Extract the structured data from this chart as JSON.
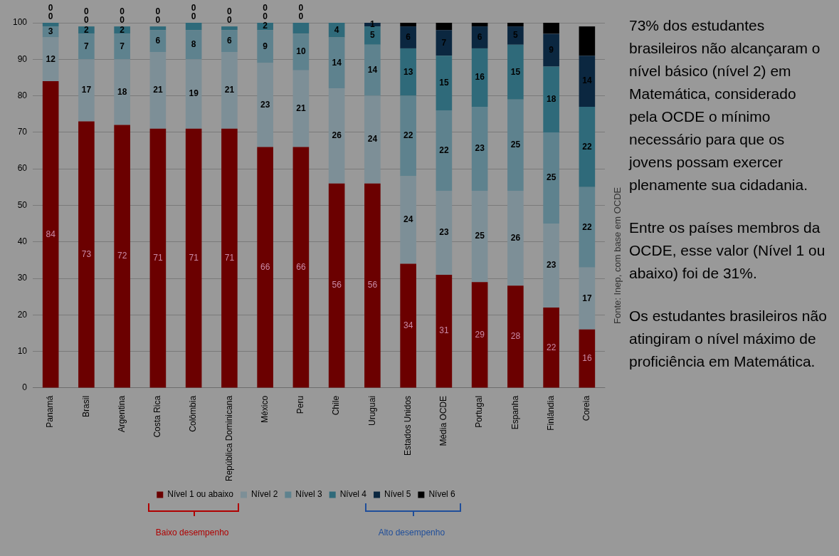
{
  "chart_data": {
    "type": "bar",
    "stacked": true,
    "categories": [
      "Panamá",
      "Brasil",
      "Argentina",
      "Costa Rica",
      "Colômbia",
      "República Dominicana",
      "México",
      "Peru",
      "Chile",
      "Uruguai",
      "Estados Unidos",
      "Média OCDE",
      "Portugal",
      "Espanha",
      "Finlândia",
      "Coreia"
    ],
    "series": [
      {
        "name": "Nível 1 ou abaixo",
        "color": "#6b0000",
        "values": [
          84,
          73,
          72,
          71,
          71,
          71,
          66,
          66,
          56,
          56,
          34,
          31,
          29,
          28,
          22,
          16
        ]
      },
      {
        "name": "Nível 2",
        "color": "#7d8f97",
        "values": [
          12,
          17,
          18,
          21,
          19,
          21,
          23,
          21,
          26,
          24,
          24,
          23,
          25,
          26,
          23,
          17
        ]
      },
      {
        "name": "Nível 3",
        "color": "#5e828e",
        "values": [
          3,
          7,
          7,
          6,
          8,
          6,
          9,
          10,
          14,
          14,
          22,
          22,
          23,
          25,
          25,
          22
        ]
      },
      {
        "name": "Nível 4",
        "color": "#2f6a7a",
        "values": [
          1,
          2,
          2,
          1,
          2,
          1,
          2,
          3,
          4,
          5,
          13,
          15,
          16,
          15,
          18,
          22
        ],
        "value_labels": [
          null,
          "2",
          "2",
          null,
          null,
          null,
          "2",
          null,
          "4",
          "5",
          "13",
          "15",
          "16",
          "15",
          "18",
          "22"
        ]
      },
      {
        "name": "Nível 5",
        "color": "#0b2740",
        "values": [
          0,
          0,
          0,
          0,
          0,
          0,
          0,
          0,
          null,
          1,
          6,
          7,
          6,
          5,
          9,
          14
        ],
        "value_labels": [
          "0",
          "0",
          "0",
          "0",
          "0",
          "0",
          "0",
          "0",
          null,
          "1",
          "6",
          "7",
          "6",
          "5",
          "9",
          "14"
        ]
      },
      {
        "name": "Nível 6",
        "color": "#000000",
        "values": [
          0,
          0,
          0,
          0,
          0,
          0,
          0,
          0,
          null,
          null,
          1,
          2,
          1,
          1,
          3,
          8
        ],
        "value_labels": [
          "0",
          "0",
          "0",
          "0",
          "0",
          "0",
          "0",
          "0",
          null,
          null,
          null,
          null,
          null,
          null,
          null,
          null
        ]
      }
    ],
    "ylim": [
      0,
      100
    ],
    "yticks": [
      0,
      10,
      20,
      30,
      40,
      50,
      60,
      70,
      80,
      90,
      100
    ],
    "grid": "y",
    "legend": "bottom",
    "data_labels": true,
    "annotations": [
      "73% dos estudantes brasileiros não alcançaram o nível básico (nível 2) em Matemática, considerado pela OCDE o mínimo necessário para que os jovens possam exercer plenamente sua cidadania.",
      "Entre os países membros da OCDE, esse valor (Nível 1 ou abaixo) foi de 31%.",
      "Os estudantes brasileiros não atingiram o nível máximo de proficiência em Matemática.",
      "Fonte: Inep, com base em OCDE",
      "Baixo desempenho",
      "Alto desempenho"
    ]
  }
}
